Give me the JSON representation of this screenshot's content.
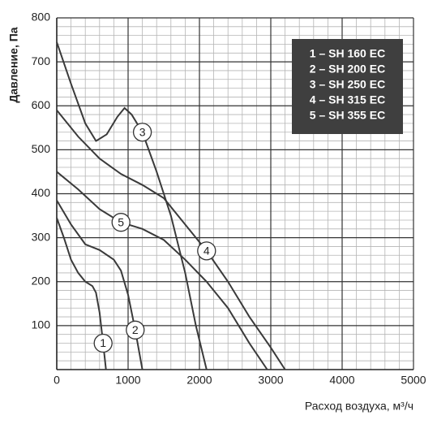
{
  "chart_data": {
    "type": "line",
    "x_label": "Расход воздуха, м³/ч",
    "y_label": "Давление, Па",
    "xlim": [
      0,
      5000
    ],
    "xticks": [
      0,
      1000,
      2000,
      3000,
      4000,
      5000
    ],
    "ylim": [
      0,
      800
    ],
    "yticks": [
      100,
      200,
      300,
      400,
      500,
      600,
      700,
      800
    ],
    "grid": true,
    "legend": "upper right",
    "series": [
      {
        "name": "1 – SH 160 EC",
        "label": "1",
        "color": "#3a3a3a",
        "x": [
          0,
          100,
          200,
          300,
          400,
          500,
          550,
          600,
          650,
          690
        ],
        "values": [
          345,
          300,
          250,
          220,
          200,
          190,
          175,
          130,
          60,
          0
        ]
      },
      {
        "name": "2 – SH 200 EC",
        "label": "2",
        "color": "#3a3a3a",
        "x": [
          0,
          200,
          400,
          600,
          800,
          900,
          1000,
          1100,
          1200
        ],
        "values": [
          385,
          330,
          285,
          272,
          250,
          225,
          170,
          90,
          0
        ]
      },
      {
        "name": "3 – SH 250 EC",
        "label": "3",
        "color": "#3a3a3a",
        "x": [
          0,
          200,
          400,
          550,
          700,
          850,
          950,
          1050,
          1200,
          1400,
          1600,
          1800,
          1950,
          2100
        ],
        "values": [
          745,
          650,
          560,
          520,
          535,
          575,
          595,
          580,
          540,
          450,
          350,
          220,
          100,
          0
        ]
      },
      {
        "name": "4 – SH 315 EC",
        "label": "4",
        "color": "#3a3a3a",
        "x": [
          0,
          300,
          600,
          900,
          1200,
          1500,
          1800,
          2100,
          2400,
          2700,
          3000,
          3200
        ],
        "values": [
          590,
          530,
          480,
          445,
          420,
          390,
          330,
          270,
          200,
          120,
          50,
          0
        ]
      },
      {
        "name": "5 – SH 355 EC",
        "label": "5",
        "color": "#3a3a3a",
        "x": [
          0,
          300,
          600,
          900,
          1200,
          1500,
          1800,
          2100,
          2400,
          2700,
          2950
        ],
        "values": [
          450,
          410,
          365,
          335,
          320,
          295,
          250,
          200,
          140,
          60,
          0
        ]
      }
    ]
  }
}
